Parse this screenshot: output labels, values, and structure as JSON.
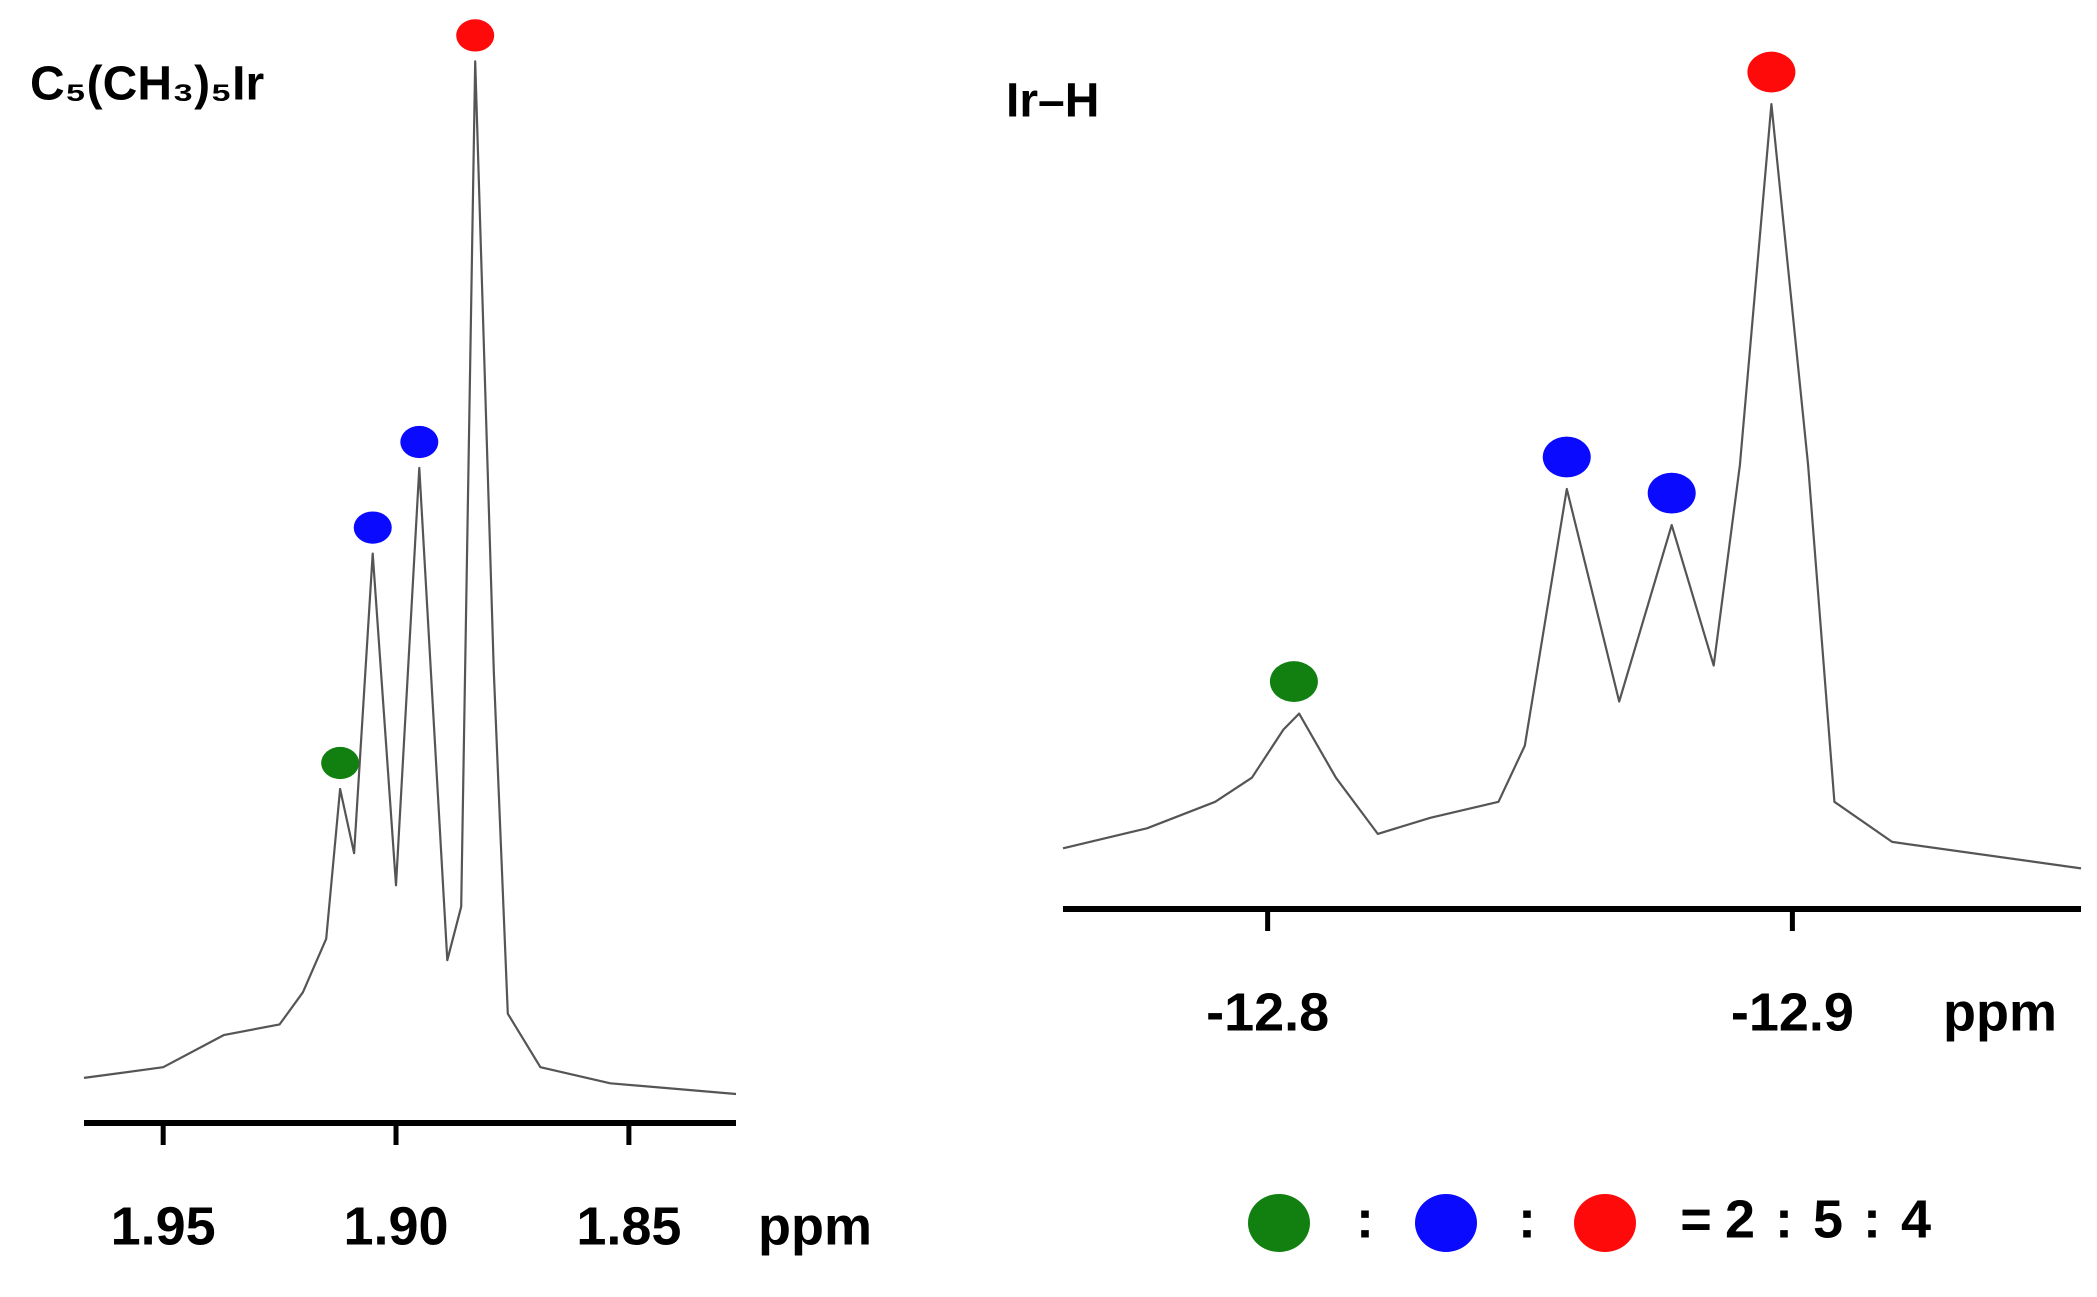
{
  "chart_data": [
    {
      "type": "line",
      "title": "C₅(CH₃)₅Ir",
      "xlabel": "ppm",
      "color": "#555555",
      "x": [
        1.967,
        1.95,
        1.937,
        1.925,
        1.92,
        1.915,
        1.912,
        1.909,
        1.905,
        1.9,
        1.895,
        1.889,
        1.886,
        1.883,
        1.879,
        1.876,
        1.869,
        1.854,
        1.827
      ],
      "values": [
        3,
        4,
        7,
        8,
        11,
        16,
        30,
        24,
        52,
        21,
        60,
        14,
        19,
        98,
        41,
        9,
        4,
        2.5,
        1.5
      ],
      "xlim": [
        1.967,
        1.827
      ],
      "ylim": [
        0,
        100
      ],
      "xticks": [
        1.95,
        {
          "value": 1.9,
          "label": "1.90"
        },
        1.85
      ],
      "peaks": {
        "x": [
          1.912,
          1.905,
          1.895,
          1.883
        ],
        "values": [
          30,
          52,
          60,
          98
        ],
        "colors": [
          "#118011",
          "#0a0aff",
          "#0a0aff",
          "#ff0a0a"
        ]
      }
    },
    {
      "type": "line",
      "title": "Ir–H",
      "xlabel": "ppm",
      "color": "#555555",
      "x": [
        -12.761,
        -12.777,
        -12.79,
        -12.797,
        -12.803,
        -12.806,
        -12.813,
        -12.821,
        -12.831,
        -12.844,
        -12.849,
        -12.857,
        -12.867,
        -12.877,
        -12.885,
        -12.89,
        -12.896,
        -12.903,
        -12.908,
        -12.919,
        -12.955
      ],
      "values": [
        4.2,
        6.7,
        10,
        13,
        19,
        21,
        13,
        6,
        8,
        10,
        17,
        49,
        22.5,
        44.5,
        27,
        52,
        97,
        52,
        10,
        5,
        1.7
      ],
      "xlim": [
        -12.761,
        -12.955
      ],
      "ylim": [
        0,
        100
      ],
      "xticks": [
        -12.8,
        -12.9
      ],
      "peaks": {
        "x": [
          -12.805,
          -12.857,
          -12.877,
          -12.896
        ],
        "values": [
          21,
          49,
          44.5,
          97
        ],
        "colors": [
          "#118011",
          "#0a0aff",
          "#0a0aff",
          "#ff0a0a"
        ]
      }
    }
  ],
  "ratio": {
    "colors": [
      "#118011",
      "#0a0aff",
      "#ff0a0a"
    ],
    "separator": ":",
    "equals": "=",
    "values": [
      2,
      5,
      4
    ]
  }
}
